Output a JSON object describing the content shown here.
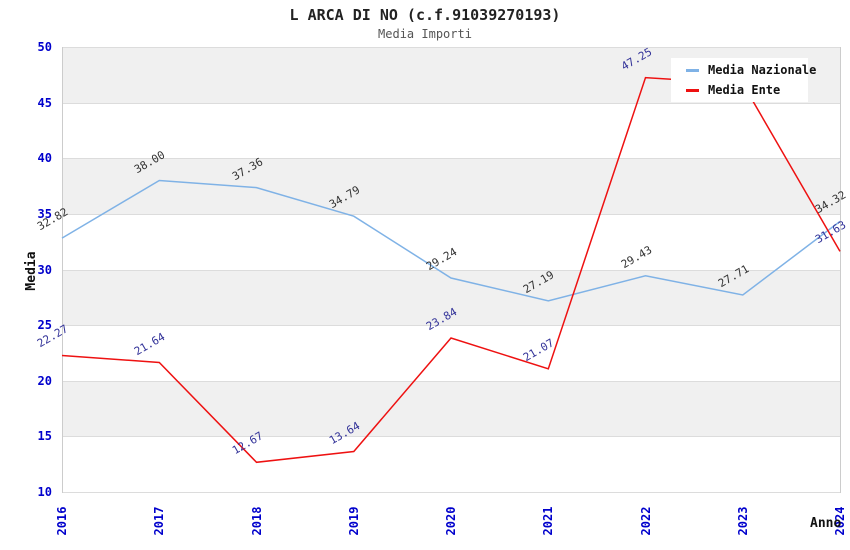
{
  "title": "L ARCA DI NO (c.f.91039270193)",
  "subtitle": "Media Importi",
  "legend": {
    "items": [
      {
        "label": "Media Nazionale",
        "color": "#7fb2e6"
      },
      {
        "label": "Media Ente",
        "color": "#ee1111"
      }
    ]
  },
  "axes": {
    "y_title": "Media",
    "x_title": "Anno",
    "y_ticks": [
      50,
      45,
      40,
      35,
      30,
      25,
      20,
      15,
      10
    ],
    "x_ticks": [
      "2016",
      "2017",
      "2018",
      "2019",
      "2020",
      "2021",
      "2022",
      "2023",
      "2024"
    ],
    "tick_color": "#0000cc"
  },
  "colors": {
    "band_gray": "#f0f0f0",
    "gridline": "#dcdcdc",
    "spine": "#cccccc",
    "title": "#222222",
    "subtitle": "#555555"
  },
  "chart_data": {
    "type": "line",
    "title": "L ARCA DI NO (c.f.91039270193)",
    "subtitle": "Media Importi",
    "xlabel": "Anno",
    "ylabel": "Media",
    "ylim": [
      10,
      50
    ],
    "y_tick_step": 5,
    "grid": "alternating-horizontal-bands",
    "legend_position": "top-right",
    "categories": [
      "2016",
      "2017",
      "2018",
      "2019",
      "2020",
      "2021",
      "2022",
      "2023",
      "2024"
    ],
    "series": [
      {
        "name": "Media Nazionale",
        "color": "#7fb2e6",
        "label_color": "#333333",
        "values": [
          32.82,
          38.0,
          37.36,
          34.79,
          29.24,
          27.19,
          29.43,
          27.71,
          34.32
        ],
        "labels": [
          "32.82",
          "38.00",
          "37.36",
          "34.79",
          "29.24",
          "27.19",
          "29.43",
          "27.71",
          "34.32"
        ]
      },
      {
        "name": "Media Ente",
        "color": "#ee1111",
        "label_color": "#333399",
        "values": [
          22.27,
          21.64,
          12.67,
          13.64,
          23.84,
          21.07,
          47.25,
          46.7,
          31.63
        ],
        "labels": [
          "22.27",
          "21.64",
          "12.67",
          "13.64",
          "23.84",
          "21.07",
          "47.25",
          null,
          "31.63"
        ]
      }
    ],
    "note": "2023 value of Media Ente series has no visible data label (hidden behind the legend box); 46.7 is estimated from the plotted line."
  }
}
